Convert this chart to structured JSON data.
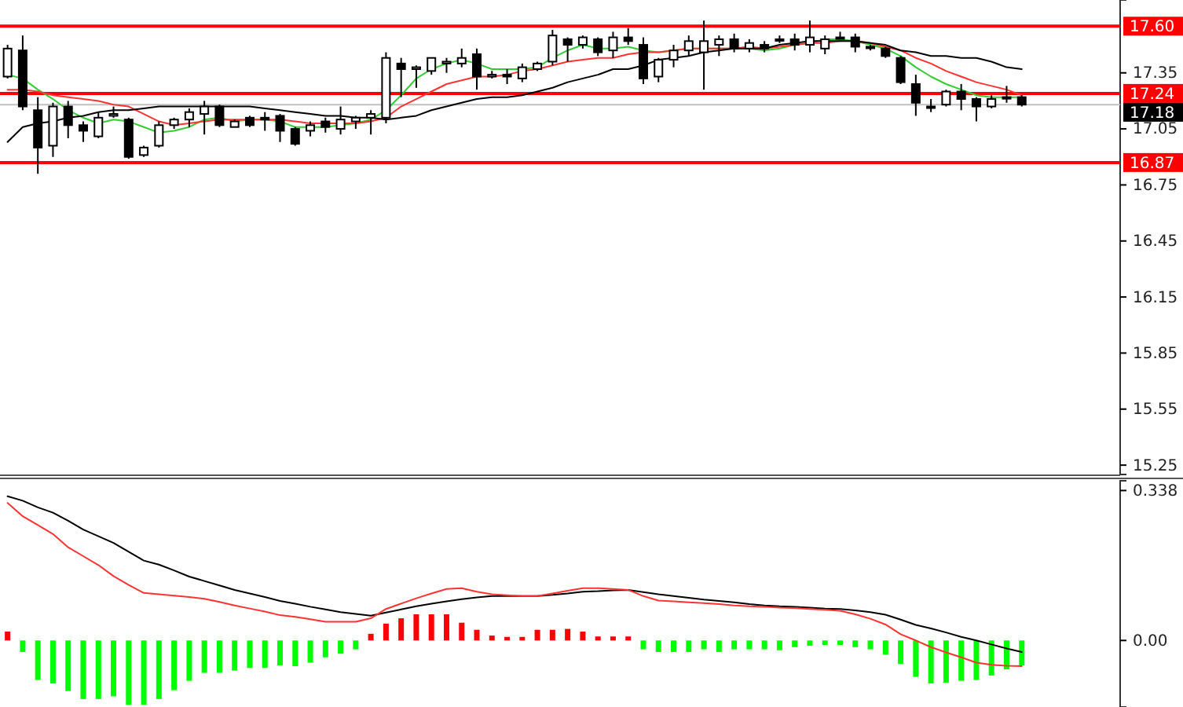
{
  "chart_data": [
    {
      "type": "candlestick",
      "categories": [
        null,
        null,
        null,
        null,
        null,
        null,
        null,
        null,
        null,
        null,
        null,
        null,
        null,
        null,
        null,
        null,
        null,
        null,
        null,
        null,
        null,
        null,
        null,
        null,
        null,
        null,
        null,
        null,
        null,
        null,
        null,
        null,
        null,
        null,
        null,
        null,
        null,
        null,
        null,
        null,
        null,
        null,
        null,
        null,
        null,
        null,
        null,
        null,
        null,
        null,
        null,
        null,
        null,
        null,
        null,
        null,
        null,
        null,
        null,
        null,
        null,
        null,
        null,
        null,
        null,
        null,
        null,
        null
      ],
      "ohlc": [
        [
          17.33,
          17.5,
          17.32,
          17.48
        ],
        [
          17.47,
          17.55,
          17.15,
          17.17
        ],
        [
          17.15,
          17.22,
          16.81,
          16.95
        ],
        [
          16.96,
          17.19,
          16.9,
          17.17
        ],
        [
          17.17,
          17.2,
          17.0,
          17.07
        ],
        [
          17.07,
          17.09,
          16.98,
          17.04
        ],
        [
          17.01,
          17.14,
          17.0,
          17.11
        ],
        [
          17.12,
          17.17,
          17.11,
          17.13
        ],
        [
          17.1,
          17.11,
          16.89,
          16.9
        ],
        [
          16.91,
          16.96,
          16.9,
          16.95
        ],
        [
          16.96,
          17.09,
          16.95,
          17.07
        ],
        [
          17.07,
          17.11,
          17.05,
          17.1
        ],
        [
          17.1,
          17.16,
          17.06,
          17.14
        ],
        [
          17.13,
          17.2,
          17.02,
          17.17
        ],
        [
          17.17,
          17.18,
          17.06,
          17.07
        ],
        [
          17.06,
          17.1,
          17.06,
          17.09
        ],
        [
          17.11,
          17.12,
          17.06,
          17.07
        ],
        [
          17.11,
          17.14,
          17.04,
          17.1
        ],
        [
          17.12,
          17.13,
          16.98,
          17.04
        ],
        [
          17.05,
          17.06,
          16.96,
          16.97
        ],
        [
          17.04,
          17.09,
          17.01,
          17.07
        ],
        [
          17.09,
          17.11,
          17.03,
          17.06
        ],
        [
          17.05,
          17.17,
          17.02,
          17.1
        ],
        [
          17.09,
          17.12,
          17.05,
          17.11
        ],
        [
          17.11,
          17.15,
          17.02,
          17.13
        ],
        [
          17.11,
          17.46,
          17.08,
          17.43
        ],
        [
          17.4,
          17.43,
          17.22,
          17.37
        ],
        [
          17.37,
          17.39,
          17.27,
          17.38
        ],
        [
          17.36,
          17.43,
          17.34,
          17.43
        ],
        [
          17.4,
          17.43,
          17.35,
          17.41
        ],
        [
          17.4,
          17.48,
          17.38,
          17.43
        ],
        [
          17.45,
          17.48,
          17.26,
          17.33
        ],
        [
          17.33,
          17.36,
          17.32,
          17.34
        ],
        [
          17.34,
          17.37,
          17.29,
          17.33
        ],
        [
          17.32,
          17.4,
          17.3,
          17.38
        ],
        [
          17.37,
          17.41,
          17.36,
          17.4
        ],
        [
          17.41,
          17.58,
          17.39,
          17.55
        ],
        [
          17.53,
          17.54,
          17.41,
          17.5
        ],
        [
          17.5,
          17.55,
          17.48,
          17.54
        ],
        [
          17.53,
          17.54,
          17.44,
          17.46
        ],
        [
          17.47,
          17.57,
          17.43,
          17.54
        ],
        [
          17.54,
          17.59,
          17.5,
          17.52
        ],
        [
          17.5,
          17.54,
          17.29,
          17.32
        ],
        [
          17.33,
          17.43,
          17.3,
          17.42
        ],
        [
          17.42,
          17.5,
          17.38,
          17.47
        ],
        [
          17.47,
          17.55,
          17.44,
          17.52
        ],
        [
          17.46,
          17.63,
          17.26,
          17.52
        ],
        [
          17.5,
          17.55,
          17.44,
          17.53
        ],
        [
          17.53,
          17.56,
          17.46,
          17.48
        ],
        [
          17.48,
          17.53,
          17.46,
          17.51
        ],
        [
          17.5,
          17.52,
          17.46,
          17.48
        ],
        [
          17.53,
          17.55,
          17.51,
          17.53
        ],
        [
          17.53,
          17.56,
          17.47,
          17.5
        ],
        [
          17.5,
          17.63,
          17.46,
          17.54
        ],
        [
          17.48,
          17.55,
          17.45,
          17.53
        ],
        [
          17.54,
          17.57,
          17.53,
          17.54
        ],
        [
          17.54,
          17.56,
          17.46,
          17.49
        ],
        [
          17.49,
          17.5,
          17.47,
          17.49
        ],
        [
          17.48,
          17.49,
          17.43,
          17.44
        ],
        [
          17.43,
          17.44,
          17.29,
          17.3
        ],
        [
          17.29,
          17.34,
          17.12,
          17.19
        ],
        [
          17.17,
          17.21,
          17.14,
          17.17
        ],
        [
          17.18,
          17.26,
          17.17,
          17.25
        ],
        [
          17.25,
          17.29,
          17.15,
          17.21
        ],
        [
          17.21,
          17.22,
          17.09,
          17.17
        ],
        [
          17.17,
          17.23,
          17.16,
          17.21
        ],
        [
          17.22,
          17.28,
          17.19,
          17.22
        ],
        [
          17.22,
          17.23,
          17.17,
          17.18
        ]
      ],
      "series": [
        {
          "type": "line",
          "color": "#33cc33",
          "values": [
            17.34,
            17.32,
            17.26,
            17.21,
            17.15,
            17.11,
            17.08,
            17.1,
            17.09,
            17.06,
            17.03,
            17.04,
            17.06,
            17.1,
            17.11,
            17.09,
            17.1,
            17.1,
            17.09,
            17.06,
            17.06,
            17.06,
            17.07,
            17.08,
            17.1,
            17.15,
            17.23,
            17.32,
            17.37,
            17.4,
            17.42,
            17.4,
            17.37,
            17.37,
            17.37,
            17.38,
            17.43,
            17.47,
            17.5,
            17.48,
            17.48,
            17.49,
            17.47,
            17.46,
            17.47,
            17.48,
            17.48,
            17.48,
            17.48,
            17.48,
            17.47,
            17.48,
            17.5,
            17.51,
            17.53,
            17.53,
            17.52,
            17.5,
            17.48,
            17.44,
            17.38,
            17.33,
            17.29,
            17.26,
            17.23,
            17.22,
            17.22,
            17.22
          ]
        },
        {
          "type": "line",
          "color": "#ff3333",
          "values": [
            17.26,
            17.26,
            17.25,
            17.23,
            17.22,
            17.21,
            17.2,
            17.18,
            17.17,
            17.13,
            17.09,
            17.07,
            17.08,
            17.09,
            17.1,
            17.1,
            17.1,
            17.1,
            17.1,
            17.09,
            17.08,
            17.08,
            17.08,
            17.08,
            17.09,
            17.11,
            17.17,
            17.21,
            17.25,
            17.29,
            17.31,
            17.33,
            17.33,
            17.34,
            17.36,
            17.37,
            17.39,
            17.41,
            17.42,
            17.43,
            17.43,
            17.45,
            17.46,
            17.46,
            17.47,
            17.48,
            17.48,
            17.48,
            17.48,
            17.49,
            17.48,
            17.49,
            17.5,
            17.51,
            17.51,
            17.52,
            17.52,
            17.51,
            17.49,
            17.47,
            17.43,
            17.4,
            17.36,
            17.33,
            17.3,
            17.28,
            17.26,
            17.23
          ]
        },
        {
          "type": "line",
          "color": "#000000",
          "values": [
            16.98,
            17.06,
            17.08,
            17.09,
            17.11,
            17.12,
            17.14,
            17.15,
            17.15,
            17.16,
            17.17,
            17.17,
            17.17,
            17.17,
            17.17,
            17.17,
            17.17,
            17.16,
            17.15,
            17.14,
            17.13,
            17.12,
            17.12,
            17.11,
            17.11,
            17.1,
            17.11,
            17.12,
            17.15,
            17.17,
            17.19,
            17.21,
            17.22,
            17.22,
            17.23,
            17.25,
            17.27,
            17.3,
            17.32,
            17.34,
            17.37,
            17.37,
            17.39,
            17.42,
            17.43,
            17.44,
            17.46,
            17.47,
            17.48,
            17.48,
            17.48,
            17.5,
            17.51,
            17.52,
            17.52,
            17.52,
            17.52,
            17.51,
            17.5,
            17.47,
            17.46,
            17.44,
            17.44,
            17.43,
            17.43,
            17.41,
            17.38,
            17.37
          ]
        }
      ],
      "ylim": [
        15.2,
        17.74
      ],
      "yticks": [
        17.35,
        17.05,
        16.75,
        16.45,
        16.15,
        15.85,
        15.55,
        15.25
      ],
      "tick_labels": "y",
      "ref_lines": [
        {
          "axis": "y",
          "value": 17.6,
          "label": "17.60",
          "color": "#ff0000"
        },
        {
          "axis": "y",
          "value": 17.24,
          "label": "17.24",
          "color": "#ff0000"
        },
        {
          "axis": "y",
          "value": 17.18,
          "label": "17.18",
          "color": "#c0c0c0"
        },
        {
          "axis": "y",
          "value": 16.87,
          "label": "16.87",
          "color": "#ff0000"
        }
      ]
    },
    {
      "type": "bar",
      "categories": [
        null,
        null,
        null,
        null,
        null,
        null,
        null,
        null,
        null,
        null,
        null,
        null,
        null,
        null,
        null,
        null,
        null,
        null,
        null,
        null,
        null,
        null,
        null,
        null,
        null,
        null,
        null,
        null,
        null,
        null,
        null,
        null,
        null,
        null,
        null,
        null,
        null,
        null,
        null,
        null,
        null,
        null,
        null,
        null,
        null,
        null,
        null,
        null,
        null,
        null,
        null,
        null,
        null,
        null,
        null,
        null,
        null,
        null,
        null,
        null,
        null,
        null,
        null,
        null,
        null,
        null,
        null,
        null
      ],
      "series": [
        {
          "values": [
            0.02,
            -0.026,
            -0.089,
            -0.097,
            -0.114,
            -0.132,
            -0.132,
            -0.126,
            -0.145,
            -0.145,
            -0.132,
            -0.112,
            -0.091,
            -0.073,
            -0.073,
            -0.068,
            -0.062,
            -0.062,
            -0.056,
            -0.058,
            -0.05,
            -0.038,
            -0.03,
            -0.02,
            0.015,
            0.038,
            0.05,
            0.059,
            0.059,
            0.059,
            0.04,
            0.024,
            0.011,
            0.008,
            0.008,
            0.024,
            0.024,
            0.026,
            0.02,
            0.009,
            0.009,
            0.009,
            -0.02,
            -0.026,
            -0.026,
            -0.026,
            -0.02,
            -0.026,
            -0.02,
            -0.02,
            -0.02,
            -0.022,
            -0.015,
            -0.012,
            -0.01,
            -0.01,
            -0.015,
            -0.02,
            -0.032,
            -0.053,
            -0.082,
            -0.097,
            -0.095,
            -0.091,
            -0.089,
            -0.079,
            -0.065,
            -0.056
          ],
          "colors": [
            "#ff0000",
            "#00ff00",
            "#00ff00",
            "#00ff00",
            "#00ff00",
            "#00ff00",
            "#00ff00",
            "#00ff00",
            "#00ff00",
            "#00ff00",
            "#00ff00",
            "#00ff00",
            "#00ff00",
            "#00ff00",
            "#00ff00",
            "#00ff00",
            "#00ff00",
            "#00ff00",
            "#00ff00",
            "#00ff00",
            "#00ff00",
            "#00ff00",
            "#00ff00",
            "#00ff00",
            "#ff0000",
            "#ff0000",
            "#ff0000",
            "#ff0000",
            "#ff0000",
            "#ff0000",
            "#ff0000",
            "#ff0000",
            "#ff0000",
            "#ff0000",
            "#ff0000",
            "#ff0000",
            "#ff0000",
            "#ff0000",
            "#ff0000",
            "#ff0000",
            "#ff0000",
            "#ff0000",
            "#00ff00",
            "#00ff00",
            "#00ff00",
            "#00ff00",
            "#00ff00",
            "#00ff00",
            "#00ff00",
            "#00ff00",
            "#00ff00",
            "#00ff00",
            "#00ff00",
            "#00ff00",
            "#00ff00",
            "#00ff00",
            "#00ff00",
            "#00ff00",
            "#00ff00",
            "#00ff00",
            "#00ff00",
            "#00ff00",
            "#00ff00",
            "#00ff00",
            "#00ff00",
            "#00ff00",
            "#00ff00",
            "#00ff00"
          ]
        },
        {
          "type": "line",
          "color": "#000000",
          "values": [
            0.325,
            0.315,
            0.3,
            0.288,
            0.27,
            0.25,
            0.235,
            0.22,
            0.2,
            0.18,
            0.171,
            0.158,
            0.144,
            0.134,
            0.124,
            0.114,
            0.106,
            0.098,
            0.089,
            0.083,
            0.076,
            0.07,
            0.064,
            0.06,
            0.056,
            0.063,
            0.07,
            0.077,
            0.083,
            0.088,
            0.093,
            0.097,
            0.1,
            0.1,
            0.1,
            0.1,
            0.103,
            0.106,
            0.11,
            0.111,
            0.113,
            0.114,
            0.109,
            0.104,
            0.1,
            0.096,
            0.092,
            0.089,
            0.086,
            0.082,
            0.079,
            0.077,
            0.076,
            0.074,
            0.072,
            0.071,
            0.068,
            0.064,
            0.058,
            0.047,
            0.035,
            0.027,
            0.018,
            0.008,
            0.0,
            -0.009,
            -0.018,
            -0.026
          ]
        },
        {
          "type": "line",
          "color": "#ff3333",
          "values": [
            0.31,
            0.28,
            0.26,
            0.24,
            0.21,
            0.19,
            0.17,
            0.145,
            0.125,
            0.107,
            0.104,
            0.101,
            0.098,
            0.094,
            0.087,
            0.079,
            0.072,
            0.065,
            0.057,
            0.053,
            0.048,
            0.042,
            0.042,
            0.042,
            0.05,
            0.071,
            0.083,
            0.095,
            0.106,
            0.116,
            0.118,
            0.11,
            0.104,
            0.102,
            0.1,
            0.1,
            0.106,
            0.112,
            0.118,
            0.118,
            0.116,
            0.114,
            0.1,
            0.09,
            0.088,
            0.086,
            0.084,
            0.082,
            0.079,
            0.077,
            0.076,
            0.074,
            0.073,
            0.071,
            0.069,
            0.067,
            0.059,
            0.049,
            0.036,
            0.014,
            0.0,
            -0.015,
            -0.027,
            -0.038,
            -0.05,
            -0.055,
            -0.057,
            -0.058
          ]
        }
      ],
      "ylim": [
        -0.15,
        0.36
      ],
      "yticks": [
        0.338,
        {
          "value": 0,
          "label": "0.00"
        }
      ],
      "tick_labels": "y"
    }
  ]
}
